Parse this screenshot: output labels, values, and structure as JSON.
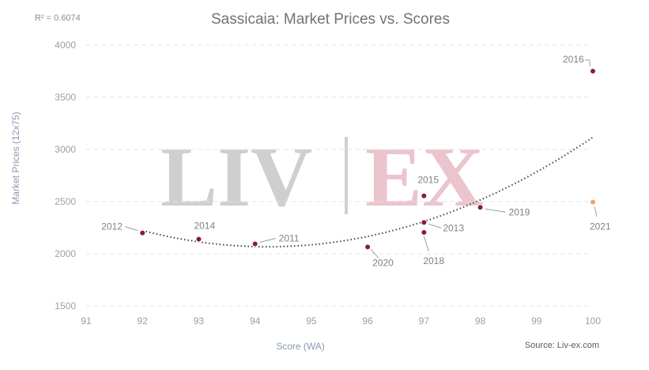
{
  "chart_data": {
    "type": "scatter",
    "title": "Sassicaia: Market Prices vs. Scores",
    "r_squared_label": "R² = 0.6074",
    "xlabel": "Score (WA)",
    "ylabel": "Market Prices (12x75)",
    "source": "Source: Liv-ex.com",
    "watermark": {
      "left": "LIV",
      "right": "EX"
    },
    "xlim": [
      91,
      100
    ],
    "ylim": [
      1500,
      4000
    ],
    "x_ticks": [
      91,
      92,
      93,
      94,
      95,
      96,
      97,
      98,
      99,
      100
    ],
    "y_ticks": [
      1500,
      2000,
      2500,
      3000,
      3500,
      4000
    ],
    "grid": true,
    "trendline": {
      "type": "polynomial",
      "style": "dotted"
    },
    "colors": {
      "points": "#8b1a3a",
      "highlight": "#f4a261",
      "trend": "#444444"
    },
    "points": [
      {
        "label": "2012",
        "x": 92,
        "y": 2200,
        "color": "#8b1a3a"
      },
      {
        "label": "2014",
        "x": 93,
        "y": 2140,
        "color": "#8b1a3a"
      },
      {
        "label": "2011",
        "x": 94,
        "y": 2095,
        "color": "#8b1a3a"
      },
      {
        "label": "2020",
        "x": 96,
        "y": 2065,
        "color": "#8b1a3a"
      },
      {
        "label": "2015",
        "x": 97,
        "y": 2555,
        "color": "#8b1a3a"
      },
      {
        "label": "2013",
        "x": 97,
        "y": 2300,
        "color": "#8b1a3a"
      },
      {
        "label": "2018",
        "x": 97,
        "y": 2205,
        "color": "#8b1a3a"
      },
      {
        "label": "2019",
        "x": 98,
        "y": 2445,
        "color": "#8b1a3a"
      },
      {
        "label": "2016",
        "x": 100,
        "y": 3750,
        "color": "#8b1a3a"
      },
      {
        "label": "2021",
        "x": 100,
        "y": 2495,
        "color": "#f4a261"
      }
    ]
  }
}
